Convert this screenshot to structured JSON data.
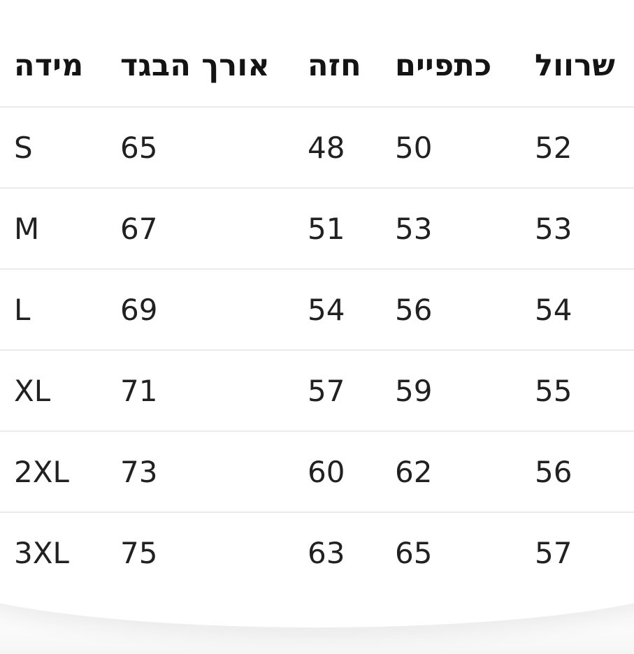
{
  "colors": {
    "background": "#ffffff",
    "header_text": "#141414",
    "cell_text": "#212121",
    "divider": "#ebebeb"
  },
  "size_chart": {
    "columns": [
      {
        "id": "size",
        "label": "מידה"
      },
      {
        "id": "garment_length",
        "label": "אורך הבגד"
      },
      {
        "id": "chest",
        "label": "חזה"
      },
      {
        "id": "shoulders",
        "label": "כתפיים"
      },
      {
        "id": "sleeve",
        "label": "שרוול"
      }
    ],
    "rows": [
      {
        "size": "S",
        "garment_length": "65",
        "chest": "48",
        "shoulders": "50",
        "sleeve": "52"
      },
      {
        "size": "M",
        "garment_length": "67",
        "chest": "51",
        "shoulders": "53",
        "sleeve": "53"
      },
      {
        "size": "L",
        "garment_length": "69",
        "chest": "54",
        "shoulders": "56",
        "sleeve": "54"
      },
      {
        "size": "XL",
        "garment_length": "71",
        "chest": "57",
        "shoulders": "59",
        "sleeve": "55"
      },
      {
        "size": "2XL",
        "garment_length": "73",
        "chest": "60",
        "shoulders": "62",
        "sleeve": "56"
      },
      {
        "size": "3XL",
        "garment_length": "75",
        "chest": "63",
        "shoulders": "65",
        "sleeve": "57"
      }
    ]
  }
}
